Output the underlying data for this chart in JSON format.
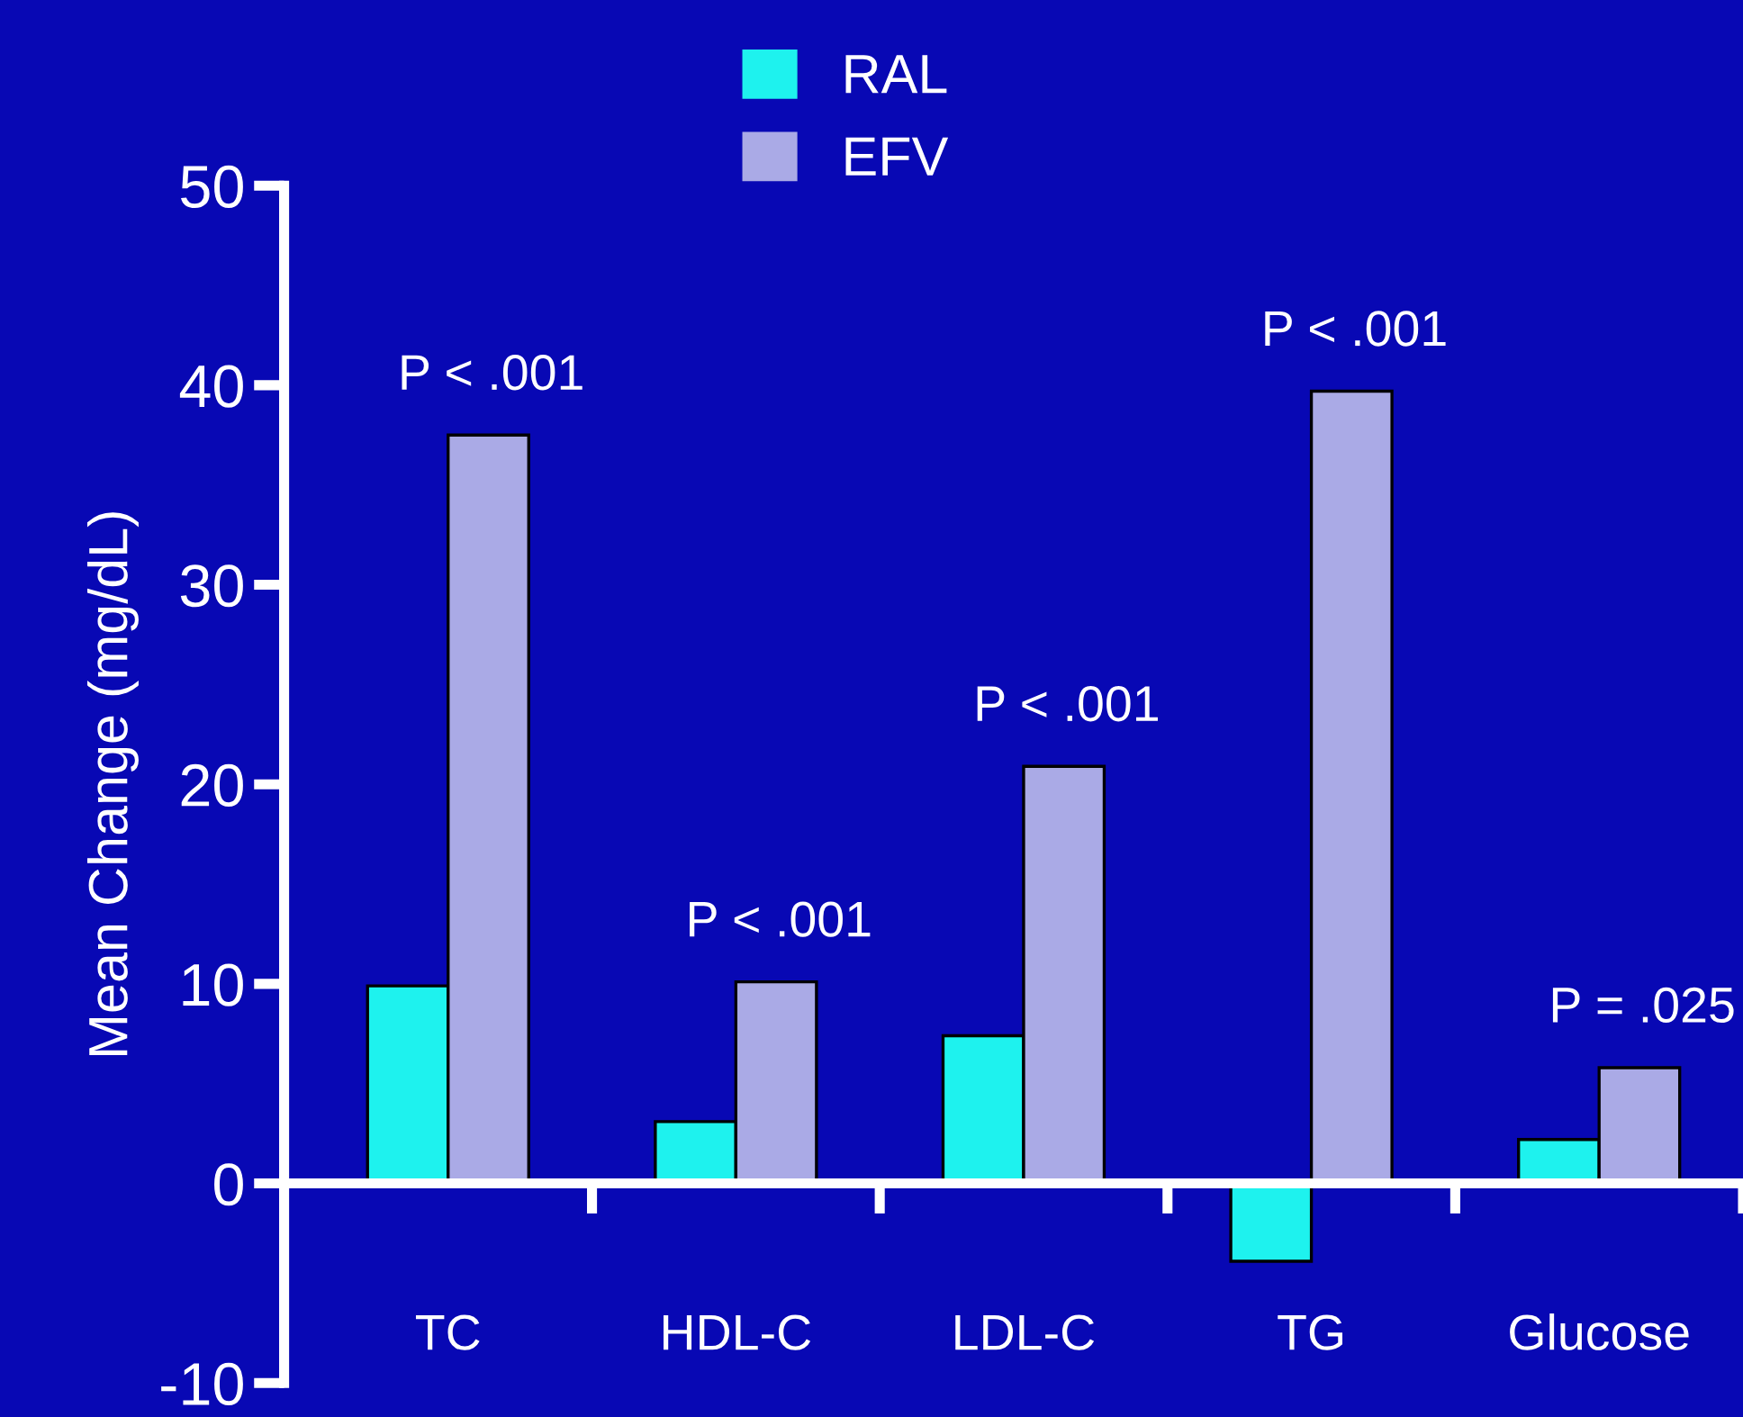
{
  "chart_data": {
    "type": "bar",
    "ylabel": "Mean Change (mg/dL)",
    "categories": [
      "TC",
      "HDL-C",
      "LDL-C",
      "TG",
      "Glucose"
    ],
    "series": [
      {
        "name": "RAL",
        "color": "#1ef2ee",
        "values": [
          9.9,
          3.1,
          7.4,
          -3.9,
          2.2
        ]
      },
      {
        "name": "EFV",
        "color": "#aaaae6",
        "values": [
          37.5,
          10.1,
          20.9,
          39.7,
          5.8
        ]
      }
    ],
    "ylim": [
      -10,
      50
    ],
    "yticks": [
      -10,
      0,
      10,
      20,
      30,
      40,
      50
    ],
    "legend": "top",
    "annotations": [
      "P < .001",
      "P < .001",
      "P < .001",
      "P < .001",
      "P = .025"
    ]
  }
}
